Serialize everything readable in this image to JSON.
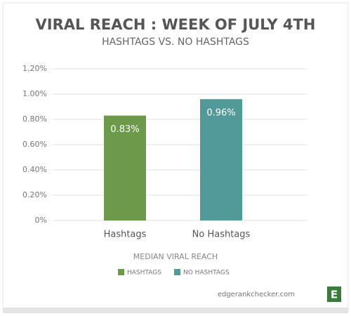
{
  "chart_data": {
    "type": "bar",
    "title": "VIRAL REACH : WEEK OF JULY 4TH",
    "subtitle": "HASHTAGS VS. NO HASHTAGS",
    "x_label": "MEDIAN VIRAL REACH",
    "categories": [
      "Hashtags",
      "No Hashtags"
    ],
    "series": [
      {
        "name": "HASHTAGS",
        "color": "#6b9a4b",
        "values": [
          0.83,
          null
        ],
        "value_labels": [
          "0.83%",
          null
        ]
      },
      {
        "name": "NO HASHTAGS",
        "color": "#52999a",
        "values": [
          null,
          0.96
        ],
        "value_labels": [
          null,
          "0.96%"
        ]
      }
    ],
    "ylim": [
      0,
      1.2
    ],
    "yticks": [
      {
        "value": 0,
        "label": "0%"
      },
      {
        "value": 0.2,
        "label": "0.20%"
      },
      {
        "value": 0.4,
        "label": "0.40%"
      },
      {
        "value": 0.6,
        "label": "0.60%"
      },
      {
        "value": 0.8,
        "label": "0.80%"
      },
      {
        "value": 1.0,
        "label": "1.00%"
      },
      {
        "value": 1.2,
        "label": "1.20%"
      }
    ],
    "grid": true,
    "legend": "bottom"
  },
  "footer": {
    "site": "edgerankchecker.com",
    "logo": "E"
  }
}
